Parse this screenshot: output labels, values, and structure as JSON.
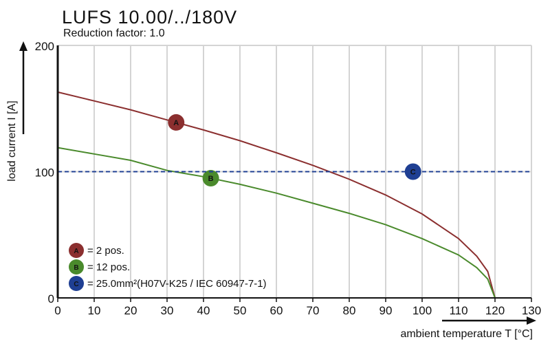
{
  "chart_data": {
    "type": "line",
    "title": "LUFS 10.00/../180V",
    "subtitle": "Reduction factor: 1.0",
    "xlabel": "ambient temperature T [°C]",
    "ylabel": "load current I [A]",
    "xlim": [
      0,
      130
    ],
    "ylim": [
      0,
      200
    ],
    "xticks": [
      0,
      10,
      20,
      30,
      40,
      50,
      60,
      70,
      80,
      90,
      100,
      110,
      120,
      130
    ],
    "yticks": [
      0,
      100,
      200
    ],
    "grid": "vertical",
    "legend_position": "bottom-left",
    "series": [
      {
        "marker": "A",
        "label": "= 2 pos.",
        "color": "#8b2f2f",
        "marker_x": 32.5,
        "x": [
          0,
          10,
          20,
          30,
          40,
          50,
          60,
          70,
          80,
          90,
          100,
          110,
          115,
          118,
          120
        ],
        "y": [
          163,
          156,
          149,
          141,
          133,
          124.5,
          115,
          105,
          94,
          81.5,
          66.5,
          47,
          33,
          21,
          0
        ]
      },
      {
        "marker": "B",
        "label": "= 12 pos.",
        "color": "#4a8a2c",
        "marker_x": 42,
        "x": [
          0,
          10,
          20,
          30,
          40,
          50,
          60,
          70,
          80,
          90,
          100,
          110,
          115,
          118,
          120
        ],
        "y": [
          119,
          114,
          109,
          101,
          96,
          90,
          83,
          75,
          67,
          58,
          47,
          34,
          24,
          15,
          0
        ]
      },
      {
        "marker": "C",
        "label": "= 25.0mm²(H07V-K25 / IEC 60947-7-1)",
        "color": "#1f3f93",
        "marker_x": 97.5,
        "style": "dashed",
        "x": [
          0,
          130
        ],
        "y": [
          100,
          100
        ]
      }
    ]
  }
}
